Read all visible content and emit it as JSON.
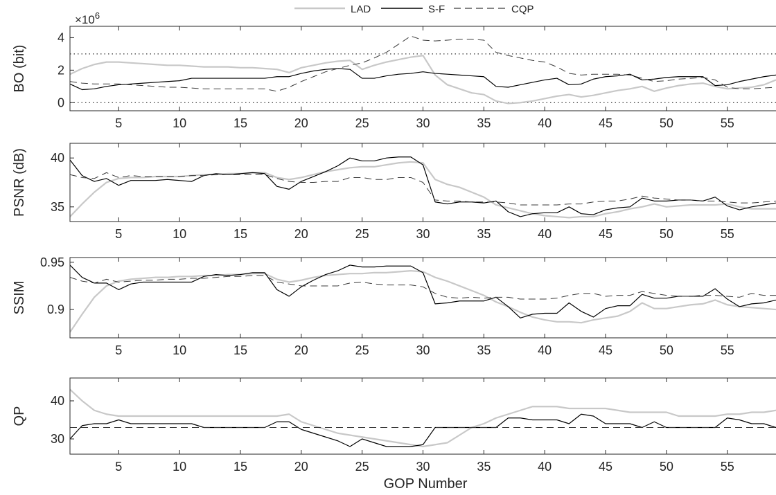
{
  "legend": {
    "items": [
      {
        "label": "LAD",
        "color": "#cccccc",
        "dash": "solid"
      },
      {
        "label": "S-F",
        "color": "#000000",
        "dash": "solid"
      },
      {
        "label": "CQP",
        "color": "#333333",
        "dash": "dashed"
      }
    ]
  },
  "chart_data": [
    {
      "type": "line",
      "ylabel": "BO (bit)",
      "y_exponent_label": "×10",
      "y_exponent_power": "6",
      "xlim": [
        1,
        59
      ],
      "ylim": [
        -0.5,
        4.7
      ],
      "xticks": [
        5,
        10,
        15,
        20,
        25,
        30,
        35,
        40,
        45,
        50,
        55
      ],
      "yticks": [
        0,
        2,
        4
      ],
      "reference_lines": [
        0,
        3
      ],
      "x": [
        1,
        2,
        3,
        4,
        5,
        6,
        7,
        8,
        9,
        10,
        11,
        12,
        13,
        14,
        15,
        16,
        17,
        18,
        19,
        20,
        21,
        22,
        23,
        24,
        25,
        26,
        27,
        28,
        29,
        30,
        31,
        32,
        33,
        34,
        35,
        36,
        37,
        38,
        39,
        40,
        41,
        42,
        43,
        44,
        45,
        46,
        47,
        48,
        49,
        50,
        51,
        52,
        53,
        54,
        55,
        56,
        57,
        58,
        59
      ],
      "series": [
        {
          "name": "LAD",
          "values": [
            1.75,
            2.1,
            2.35,
            2.5,
            2.5,
            2.45,
            2.4,
            2.35,
            2.3,
            2.3,
            2.25,
            2.2,
            2.2,
            2.2,
            2.15,
            2.15,
            2.1,
            2.05,
            1.85,
            2.15,
            2.3,
            2.45,
            2.55,
            2.6,
            2.05,
            2.3,
            2.5,
            2.65,
            2.8,
            2.9,
            1.7,
            1.1,
            0.85,
            0.6,
            0.5,
            0.1,
            -0.05,
            0.0,
            0.1,
            0.25,
            0.4,
            0.5,
            0.35,
            0.45,
            0.6,
            0.75,
            0.85,
            1.0,
            0.7,
            0.9,
            1.05,
            1.15,
            1.2,
            1.0,
            0.85,
            0.9,
            0.95,
            1.1,
            1.4
          ]
        },
        {
          "name": "S-F",
          "values": [
            1.15,
            0.8,
            0.85,
            1.0,
            1.1,
            1.15,
            1.2,
            1.25,
            1.3,
            1.35,
            1.5,
            1.5,
            1.5,
            1.5,
            1.5,
            1.5,
            1.5,
            1.6,
            1.6,
            1.8,
            1.95,
            2.05,
            2.1,
            2.05,
            1.5,
            1.5,
            1.65,
            1.75,
            1.8,
            1.9,
            1.8,
            1.75,
            1.7,
            1.65,
            1.6,
            1.0,
            0.95,
            1.1,
            1.25,
            1.4,
            1.5,
            1.1,
            1.15,
            1.45,
            1.6,
            1.65,
            1.75,
            1.4,
            1.45,
            1.55,
            1.6,
            1.6,
            1.6,
            1.05,
            1.1,
            1.3,
            1.45,
            1.6,
            1.7
          ]
        },
        {
          "name": "CQP",
          "values": [
            1.3,
            1.2,
            1.15,
            1.15,
            1.15,
            1.1,
            1.05,
            1.0,
            0.95,
            0.95,
            0.9,
            0.85,
            0.85,
            0.85,
            0.85,
            0.85,
            0.85,
            0.7,
            0.95,
            1.3,
            1.6,
            1.9,
            2.1,
            2.3,
            2.45,
            2.75,
            3.1,
            3.6,
            4.1,
            3.85,
            3.8,
            3.85,
            3.9,
            3.9,
            3.85,
            3.1,
            2.9,
            2.75,
            2.6,
            2.5,
            2.2,
            1.8,
            1.7,
            1.75,
            1.75,
            1.75,
            1.7,
            1.5,
            1.3,
            1.35,
            1.45,
            1.5,
            1.55,
            1.4,
            0.95,
            0.85,
            0.85,
            0.9,
            0.95
          ]
        }
      ]
    },
    {
      "type": "line",
      "ylabel": "PSNR (dB)",
      "xlim": [
        1,
        59
      ],
      "ylim": [
        33.5,
        41.5
      ],
      "xticks": [
        5,
        10,
        15,
        20,
        25,
        30,
        35,
        40,
        45,
        50,
        55
      ],
      "yticks": [
        35,
        40
      ],
      "x": [
        1,
        2,
        3,
        4,
        5,
        6,
        7,
        8,
        9,
        10,
        11,
        12,
        13,
        14,
        15,
        16,
        17,
        18,
        19,
        20,
        21,
        22,
        23,
        24,
        25,
        26,
        27,
        28,
        29,
        30,
        31,
        32,
        33,
        34,
        35,
        36,
        37,
        38,
        39,
        40,
        41,
        42,
        43,
        44,
        45,
        46,
        47,
        48,
        49,
        50,
        51,
        52,
        53,
        54,
        55,
        56,
        57,
        58,
        59
      ],
      "series": [
        {
          "name": "LAD",
          "values": [
            34.0,
            35.3,
            36.5,
            37.5,
            37.9,
            38.0,
            38.0,
            38.1,
            38.1,
            38.1,
            38.2,
            38.3,
            38.3,
            38.4,
            38.4,
            38.5,
            38.5,
            38.0,
            37.8,
            38.0,
            38.3,
            38.6,
            38.8,
            39.0,
            39.1,
            39.1,
            39.3,
            39.5,
            39.6,
            39.5,
            37.8,
            37.3,
            37.0,
            36.5,
            36.0,
            35.2,
            34.9,
            34.6,
            34.3,
            34.1,
            34.0,
            33.9,
            34.0,
            34.0,
            34.3,
            34.5,
            34.8,
            35.0,
            35.3,
            35.0,
            35.1,
            35.2,
            35.2,
            35.2,
            35.3,
            35.0,
            34.8,
            34.8,
            34.8
          ]
        },
        {
          "name": "S-F",
          "values": [
            39.8,
            38.2,
            37.6,
            37.9,
            37.2,
            37.7,
            37.7,
            37.7,
            37.8,
            37.7,
            37.6,
            38.2,
            38.4,
            38.3,
            38.4,
            38.5,
            38.4,
            37.1,
            36.8,
            37.6,
            38.1,
            38.6,
            39.2,
            40.0,
            39.7,
            39.7,
            40.0,
            40.1,
            40.1,
            39.3,
            35.5,
            35.3,
            35.5,
            35.5,
            35.4,
            35.6,
            34.5,
            34.0,
            34.3,
            34.4,
            34.4,
            35.0,
            34.3,
            34.2,
            34.7,
            34.9,
            35.0,
            35.9,
            35.6,
            35.6,
            35.7,
            35.7,
            35.6,
            36.0,
            35.1,
            34.7,
            35.0,
            35.2,
            35.4
          ]
        },
        {
          "name": "CQP",
          "values": [
            38.3,
            38.0,
            37.9,
            38.5,
            38.0,
            38.2,
            38.1,
            38.1,
            38.1,
            38.1,
            38.2,
            38.2,
            38.3,
            38.3,
            38.3,
            38.3,
            38.3,
            37.9,
            37.6,
            37.5,
            37.5,
            37.6,
            37.6,
            38.0,
            38.0,
            37.8,
            37.8,
            38.0,
            38.0,
            37.5,
            35.7,
            35.6,
            35.6,
            35.5,
            35.5,
            35.5,
            35.4,
            35.2,
            35.2,
            35.2,
            35.2,
            35.3,
            35.3,
            35.5,
            35.6,
            35.6,
            35.8,
            36.1,
            35.9,
            35.8,
            35.7,
            35.7,
            35.6,
            35.6,
            35.5,
            35.4,
            35.4,
            35.5,
            35.6
          ]
        }
      ]
    },
    {
      "type": "line",
      "ylabel": "SSIM",
      "xlim": [
        1,
        59
      ],
      "ylim": [
        0.87,
        0.955
      ],
      "xticks": [
        5,
        10,
        15,
        20,
        25,
        30,
        35,
        40,
        45,
        50,
        55
      ],
      "yticks": [
        0.9,
        0.95
      ],
      "ytick_labels": [
        "0.9",
        "0.95"
      ],
      "x": [
        1,
        2,
        3,
        4,
        5,
        6,
        7,
        8,
        9,
        10,
        11,
        12,
        13,
        14,
        15,
        16,
        17,
        18,
        19,
        20,
        21,
        22,
        23,
        24,
        25,
        26,
        27,
        28,
        29,
        30,
        31,
        32,
        33,
        34,
        35,
        36,
        37,
        38,
        39,
        40,
        41,
        42,
        43,
        44,
        45,
        46,
        47,
        48,
        49,
        50,
        51,
        52,
        53,
        54,
        55,
        56,
        57,
        58,
        59
      ],
      "series": [
        {
          "name": "LAD",
          "values": [
            0.876,
            0.895,
            0.913,
            0.925,
            0.93,
            0.932,
            0.933,
            0.934,
            0.934,
            0.935,
            0.935,
            0.936,
            0.936,
            0.937,
            0.937,
            0.938,
            0.938,
            0.932,
            0.929,
            0.931,
            0.934,
            0.936,
            0.937,
            0.938,
            0.938,
            0.939,
            0.939,
            0.94,
            0.941,
            0.94,
            0.934,
            0.93,
            0.925,
            0.92,
            0.915,
            0.908,
            0.903,
            0.897,
            0.892,
            0.889,
            0.887,
            0.887,
            0.886,
            0.889,
            0.891,
            0.893,
            0.898,
            0.907,
            0.901,
            0.901,
            0.903,
            0.905,
            0.906,
            0.91,
            0.905,
            0.903,
            0.902,
            0.901,
            0.9
          ]
        },
        {
          "name": "S-F",
          "values": [
            0.947,
            0.934,
            0.928,
            0.928,
            0.921,
            0.927,
            0.929,
            0.929,
            0.929,
            0.929,
            0.929,
            0.935,
            0.937,
            0.936,
            0.937,
            0.939,
            0.939,
            0.921,
            0.914,
            0.924,
            0.931,
            0.937,
            0.941,
            0.947,
            0.945,
            0.945,
            0.946,
            0.946,
            0.946,
            0.939,
            0.906,
            0.907,
            0.909,
            0.909,
            0.909,
            0.913,
            0.903,
            0.891,
            0.895,
            0.896,
            0.896,
            0.907,
            0.898,
            0.892,
            0.901,
            0.904,
            0.904,
            0.916,
            0.912,
            0.912,
            0.914,
            0.914,
            0.914,
            0.922,
            0.911,
            0.903,
            0.906,
            0.907,
            0.91
          ]
        },
        {
          "name": "CQP",
          "values": [
            0.934,
            0.93,
            0.928,
            0.932,
            0.929,
            0.93,
            0.931,
            0.931,
            0.932,
            0.932,
            0.933,
            0.933,
            0.934,
            0.935,
            0.935,
            0.936,
            0.936,
            0.929,
            0.927,
            0.925,
            0.925,
            0.925,
            0.925,
            0.928,
            0.929,
            0.927,
            0.926,
            0.926,
            0.926,
            0.924,
            0.917,
            0.913,
            0.912,
            0.913,
            0.912,
            0.913,
            0.913,
            0.911,
            0.911,
            0.911,
            0.912,
            0.915,
            0.917,
            0.917,
            0.914,
            0.915,
            0.915,
            0.919,
            0.917,
            0.915,
            0.914,
            0.914,
            0.915,
            0.915,
            0.914,
            0.913,
            0.917,
            0.915,
            0.915
          ]
        }
      ]
    },
    {
      "type": "line",
      "ylabel": "QP",
      "xlabel": "GOP Number",
      "xlim": [
        1,
        59
      ],
      "ylim": [
        26,
        46
      ],
      "xticks": [
        5,
        10,
        15,
        20,
        25,
        30,
        35,
        40,
        45,
        50,
        55
      ],
      "yticks": [
        30,
        40
      ],
      "x": [
        1,
        2,
        3,
        4,
        5,
        6,
        7,
        8,
        9,
        10,
        11,
        12,
        13,
        14,
        15,
        16,
        17,
        18,
        19,
        20,
        21,
        22,
        23,
        24,
        25,
        26,
        27,
        28,
        29,
        30,
        31,
        32,
        33,
        34,
        35,
        36,
        37,
        38,
        39,
        40,
        41,
        42,
        43,
        44,
        45,
        46,
        47,
        48,
        49,
        50,
        51,
        52,
        53,
        54,
        55,
        56,
        57,
        58,
        59
      ],
      "series": [
        {
          "name": "LAD",
          "values": [
            43,
            40,
            37.5,
            36.5,
            36,
            36,
            36,
            36,
            36,
            36,
            36,
            36,
            36,
            36,
            36,
            36,
            36,
            36,
            36.5,
            34.5,
            33.5,
            32.5,
            31.5,
            31,
            30.5,
            30,
            29.5,
            29,
            28.5,
            28,
            28.5,
            29,
            31,
            33,
            34,
            35.5,
            36.5,
            37.5,
            38.5,
            38.5,
            38.5,
            38,
            38,
            38,
            38,
            37.5,
            37,
            37,
            37,
            37,
            36,
            36,
            36,
            36,
            36.5,
            36.5,
            37,
            37,
            37.5
          ]
        },
        {
          "name": "S-F",
          "values": [
            30,
            33.5,
            34,
            34,
            35,
            34,
            34,
            34,
            34,
            34,
            34,
            33,
            33,
            33,
            33,
            33,
            33,
            34.5,
            34.5,
            32.5,
            31.5,
            30.5,
            29.5,
            28,
            30,
            29,
            28,
            28,
            28,
            28.5,
            33,
            33,
            33,
            33,
            33,
            33,
            35.5,
            35.5,
            35,
            35,
            35,
            34,
            36.5,
            36,
            34,
            34,
            34,
            33,
            34.5,
            33,
            33,
            33,
            33,
            33,
            35.5,
            35,
            34,
            34,
            33
          ]
        },
        {
          "name": "CQP",
          "values": [
            33,
            33,
            33,
            33,
            33,
            33,
            33,
            33,
            33,
            33,
            33,
            33,
            33,
            33,
            33,
            33,
            33,
            33,
            33,
            33,
            33,
            33,
            33,
            33,
            33,
            33,
            33,
            33,
            33,
            33,
            33,
            33,
            33,
            33,
            33,
            33,
            33,
            33,
            33,
            33,
            33,
            33,
            33,
            33,
            33,
            33,
            33,
            33,
            33,
            33,
            33,
            33,
            33,
            33,
            33,
            33,
            33,
            33,
            33
          ]
        }
      ]
    }
  ]
}
